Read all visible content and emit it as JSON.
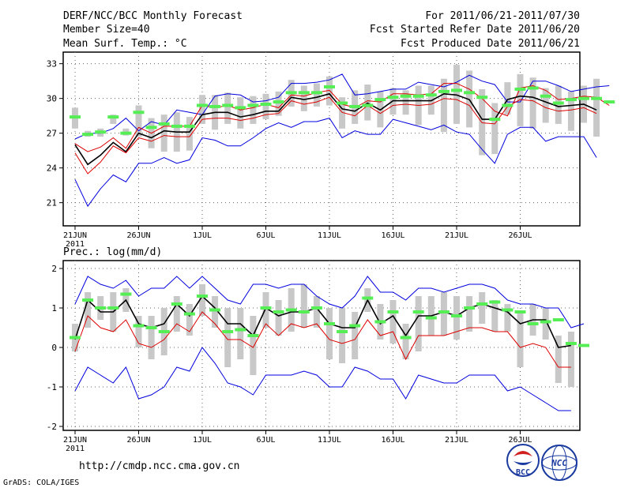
{
  "header": {
    "title": "DERF/NCC/BCC Monthly Forecast",
    "member_size": "Member Size=40",
    "temp_label": "Mean Surf. Temp.: °C",
    "period": "For 2011/06/21-2011/07/30",
    "start_date": "Fcst Started Refer Date 2011/06/20",
    "produced_date": "Fcst Produced Date 2011/06/21"
  },
  "footer": {
    "url": "http://cmdp.ncc.cma.gov.cn",
    "credit": "GrADS: COLA/IGES",
    "logo_bcc": "BCC",
    "logo_ncc": "NCC"
  },
  "colors": {
    "member_max_min": "#0000dd",
    "ensemble_mean": "#000000",
    "quartile": "#dd0000",
    "spread_bar": "#c8c8c8",
    "observation": "#55ee55",
    "grid": "#666666"
  },
  "chart_data": [
    {
      "type": "line",
      "id": "temperature",
      "ylabel": "Mean Surf. Temp.: °C",
      "ylim": [
        19,
        34
      ],
      "yticks": [
        21,
        24,
        27,
        30,
        33
      ],
      "xlim": [
        0,
        41
      ],
      "xticks": [
        {
          "day": 1,
          "label": "21JUN"
        },
        {
          "day": 6,
          "label": "26JUN"
        },
        {
          "day": 11,
          "label": "1JUL"
        },
        {
          "day": 16,
          "label": "6JUL"
        },
        {
          "day": 21,
          "label": "11JUL"
        },
        {
          "day": 26,
          "label": "16JUL"
        },
        {
          "day": 31,
          "label": "21JUL"
        },
        {
          "day": 36,
          "label": "26JUL"
        }
      ],
      "year_label": "2011",
      "series": [
        {
          "name": "max",
          "values": [
            26.5,
            27.0,
            27.0,
            27.4,
            28.3,
            27.2,
            28.0,
            27.7,
            29.0,
            28.8,
            28.6,
            30.2,
            30.4,
            30.3,
            29.7,
            29.8,
            30.1,
            31.3,
            31.3,
            31.4,
            31.6,
            32.1,
            30.3,
            30.4,
            30.6,
            30.8,
            30.8,
            31.4,
            31.2,
            31.0,
            31.4,
            32.0,
            31.5,
            31.2,
            29.7,
            29.7,
            31.5,
            31.5,
            31.1,
            30.6,
            30.8,
            31.0,
            31.1
          ]
        },
        {
          "name": "upper_quartile",
          "values": [
            26.1,
            25.4,
            25.8,
            26.6,
            25.7,
            27.5,
            27.0,
            27.6,
            27.6,
            27.6,
            29.4,
            29.2,
            29.4,
            29.0,
            29.2,
            29.5,
            29.2,
            30.3,
            30.2,
            30.5,
            30.7,
            29.5,
            29.2,
            29.8,
            29.7,
            30.4,
            30.4,
            30.3,
            30.4,
            31.3,
            31.3,
            30.8,
            30.0,
            28.9,
            28.5,
            30.9,
            31.1,
            30.7,
            29.9,
            30.0,
            30.2,
            30.1,
            29.4
          ]
        },
        {
          "name": "mean",
          "values": [
            26.0,
            24.3,
            25.1,
            26.2,
            25.4,
            27.0,
            26.6,
            27.2,
            27.1,
            27.1,
            28.6,
            28.8,
            28.8,
            28.4,
            28.6,
            28.9,
            28.9,
            30.1,
            29.9,
            30.1,
            30.4,
            29.1,
            28.9,
            29.6,
            29.0,
            29.8,
            29.8,
            29.8,
            29.8,
            30.4,
            30.3,
            29.9,
            28.2,
            28.2,
            29.9,
            30.2,
            30.1,
            29.7,
            29.3,
            29.4,
            29.5,
            29.0
          ]
        },
        {
          "name": "lower_quartile",
          "values": [
            25.3,
            23.5,
            24.5,
            25.9,
            25.3,
            26.6,
            26.3,
            26.8,
            26.7,
            26.7,
            28.2,
            28.3,
            28.3,
            28.1,
            28.3,
            28.6,
            28.7,
            29.8,
            29.5,
            29.7,
            30.1,
            28.8,
            28.5,
            29.4,
            28.7,
            29.4,
            29.5,
            29.4,
            29.5,
            30.0,
            29.9,
            29.4,
            27.9,
            27.8,
            29.3,
            29.9,
            29.8,
            29.2,
            28.9,
            29.0,
            29.2,
            28.7
          ]
        },
        {
          "name": "min",
          "values": [
            23.0,
            20.7,
            22.2,
            23.4,
            22.8,
            24.4,
            24.4,
            24.9,
            24.4,
            24.7,
            26.6,
            26.4,
            25.9,
            25.9,
            26.6,
            27.4,
            27.9,
            27.5,
            28.0,
            28.0,
            28.3,
            26.6,
            27.2,
            26.9,
            26.9,
            28.2,
            27.9,
            27.6,
            27.3,
            27.7,
            27.1,
            26.9,
            25.6,
            24.4,
            26.9,
            27.5,
            27.5,
            26.3,
            26.7,
            26.7,
            26.7,
            24.9
          ]
        }
      ],
      "spread_bars": [
        [
          27.4,
          29.2
        ],
        [
          26.7,
          27.2
        ],
        [
          26.7,
          27.4
        ],
        [
          27.8,
          28.6
        ],
        [
          26.8,
          27.4
        ],
        [
          26.7,
          29.4
        ],
        [
          25.7,
          28.3
        ],
        [
          25.4,
          28.6
        ],
        [
          25.4,
          28.8
        ],
        [
          25.5,
          28.4
        ],
        [
          27.8,
          30.3
        ],
        [
          27.3,
          30.3
        ],
        [
          27.8,
          30.5
        ],
        [
          27.4,
          30.1
        ],
        [
          27.8,
          30.2
        ],
        [
          28.2,
          30.4
        ],
        [
          28.5,
          30.6
        ],
        [
          29.3,
          31.6
        ],
        [
          28.9,
          31.1
        ],
        [
          29.3,
          31.3
        ],
        [
          29.4,
          31.9
        ],
        [
          27.4,
          30.1
        ],
        [
          27.8,
          30.7
        ],
        [
          28.1,
          31.2
        ],
        [
          27.5,
          30.6
        ],
        [
          28.6,
          30.9
        ],
        [
          28.6,
          30.7
        ],
        [
          27.7,
          31.1
        ],
        [
          28.6,
          31.1
        ],
        [
          27.1,
          31.7
        ],
        [
          27.8,
          32.9
        ],
        [
          27.5,
          32.4
        ],
        [
          25.1,
          30.8
        ],
        [
          25.2,
          29.6
        ],
        [
          28.6,
          31.4
        ],
        [
          27.6,
          32.1
        ],
        [
          27.4,
          31.8
        ],
        [
          27.9,
          30.9
        ],
        [
          27.8,
          31.1
        ],
        [
          27.2,
          30.6
        ],
        [
          27.9,
          31.1
        ],
        [
          26.7,
          31.7
        ]
      ],
      "observations": [
        28.4,
        26.9,
        27.1,
        28.4,
        27.0,
        28.8,
        27.5,
        27.8,
        27.6,
        27.6,
        29.4,
        29.3,
        29.4,
        29.2,
        29.4,
        29.5,
        29.7,
        30.5,
        30.5,
        30.5,
        31.0,
        29.6,
        29.3,
        29.4,
        29.9,
        30.1,
        30.2,
        30.2,
        30.3,
        30.6,
        30.7,
        30.5,
        30.1,
        28.2,
        29.4,
        30.8,
        30.9,
        30.2,
        29.6,
        29.9,
        30.0,
        30.0,
        29.7
      ]
    },
    {
      "type": "line",
      "id": "precipitation",
      "ylabel": "Prec.: log(mm/d)",
      "ylim": [
        -2.1,
        2.2
      ],
      "yticks": [
        -2,
        -1,
        0,
        1,
        2
      ],
      "xlim": [
        0,
        41
      ],
      "xticks": [
        {
          "day": 1,
          "label": "21JUN"
        },
        {
          "day": 6,
          "label": "26JUN"
        },
        {
          "day": 11,
          "label": "1JUL"
        },
        {
          "day": 16,
          "label": "6JUL"
        },
        {
          "day": 21,
          "label": "11JUL"
        },
        {
          "day": 26,
          "label": "16JUL"
        },
        {
          "day": 31,
          "label": "21JUL"
        },
        {
          "day": 36,
          "label": "26JUL"
        }
      ],
      "year_label": "2011",
      "series": [
        {
          "name": "max",
          "values": [
            1.1,
            1.8,
            1.6,
            1.5,
            1.7,
            1.3,
            1.5,
            1.5,
            1.8,
            1.5,
            1.8,
            1.5,
            1.2,
            1.1,
            1.6,
            1.6,
            1.5,
            1.6,
            1.6,
            1.3,
            1.1,
            1.0,
            1.3,
            1.8,
            1.4,
            1.4,
            1.2,
            1.5,
            1.5,
            1.4,
            1.5,
            1.6,
            1.6,
            1.5,
            1.2,
            1.1,
            1.1,
            1.0,
            1.0,
            0.5,
            0.6
          ]
        },
        {
          "name": "mean",
          "values": [
            0.2,
            1.2,
            0.9,
            0.9,
            1.2,
            0.6,
            0.5,
            0.6,
            1.1,
            0.8,
            1.3,
            1.0,
            0.6,
            0.6,
            0.3,
            1.0,
            0.8,
            0.9,
            0.9,
            1.0,
            0.6,
            0.5,
            0.5,
            1.2,
            0.6,
            0.8,
            0.3,
            0.8,
            0.8,
            0.9,
            0.8,
            1.0,
            1.1,
            1.0,
            0.9,
            0.6,
            0.7,
            0.7,
            0.0,
            0.05
          ]
        },
        {
          "name": "lower_quartile",
          "values": [
            -0.1,
            0.8,
            0.5,
            0.4,
            0.7,
            0.1,
            0.0,
            0.2,
            0.6,
            0.4,
            0.9,
            0.6,
            0.2,
            0.2,
            0.0,
            0.6,
            0.3,
            0.6,
            0.5,
            0.6,
            0.2,
            0.1,
            0.2,
            0.7,
            0.3,
            0.4,
            -0.3,
            0.3,
            0.3,
            0.3,
            0.4,
            0.5,
            0.5,
            0.4,
            0.4,
            0.0,
            0.1,
            0.0,
            -0.5,
            -0.5
          ]
        },
        {
          "name": "min",
          "values": [
            -1.1,
            -0.5,
            -0.7,
            -0.9,
            -0.5,
            -1.3,
            -1.2,
            -1.0,
            -0.5,
            -0.6,
            0.0,
            -0.4,
            -0.9,
            -1.0,
            -1.2,
            -0.7,
            -0.7,
            -0.7,
            -0.6,
            -0.7,
            -1.0,
            -1.0,
            -0.5,
            -0.6,
            -0.8,
            -0.8,
            -1.3,
            -0.7,
            -0.8,
            -0.9,
            -0.9,
            -0.7,
            -0.7,
            -0.7,
            -1.1,
            -1.0,
            -1.2,
            -1.4,
            -1.6,
            -1.6
          ]
        }
      ],
      "spread_bars": [
        [
          -0.1,
          0.6
        ],
        [
          0.5,
          1.4
        ],
        [
          0.7,
          1.3
        ],
        [
          0.4,
          1.4
        ],
        [
          0.9,
          1.5
        ],
        [
          0.0,
          0.8
        ],
        [
          -0.3,
          0.8
        ],
        [
          -0.2,
          1.0
        ],
        [
          0.4,
          1.3
        ],
        [
          0.3,
          1.1
        ],
        [
          0.8,
          1.6
        ],
        [
          0.5,
          1.3
        ],
        [
          -0.5,
          1.0
        ],
        [
          -0.3,
          1.0
        ],
        [
          -0.7,
          0.8
        ],
        [
          0.5,
          1.4
        ],
        [
          0.3,
          1.2
        ],
        [
          0.4,
          1.5
        ],
        [
          0.5,
          1.6
        ],
        [
          0.5,
          1.3
        ],
        [
          -0.3,
          1.0
        ],
        [
          -0.4,
          1.0
        ],
        [
          -0.3,
          0.9
        ],
        [
          0.9,
          1.5
        ],
        [
          0.2,
          1.1
        ],
        [
          0.1,
          1.2
        ],
        [
          -0.3,
          0.6
        ],
        [
          -0.1,
          1.3
        ],
        [
          0.3,
          1.3
        ],
        [
          0.3,
          1.4
        ],
        [
          0.2,
          1.3
        ],
        [
          0.4,
          1.3
        ],
        [
          0.6,
          1.4
        ],
        [
          0.4,
          1.2
        ],
        [
          0.4,
          1.1
        ],
        [
          -0.5,
          0.9
        ],
        [
          0.3,
          1.1
        ],
        [
          0.2,
          1.0
        ],
        [
          -0.9,
          0.3
        ],
        [
          -1.0,
          0.4
        ]
      ],
      "observations": [
        0.25,
        1.2,
        1.0,
        1.0,
        1.35,
        0.55,
        0.5,
        0.4,
        1.1,
        0.85,
        1.3,
        0.95,
        0.4,
        0.45,
        0.3,
        1.0,
        0.9,
        0.95,
        0.9,
        1.0,
        0.6,
        0.4,
        0.55,
        1.25,
        0.65,
        0.9,
        0.25,
        0.9,
        0.75,
        0.9,
        0.8,
        1.0,
        1.1,
        1.15,
        0.95,
        0.9,
        0.6,
        0.65,
        0.7,
        0.1,
        0.05
      ]
    }
  ]
}
